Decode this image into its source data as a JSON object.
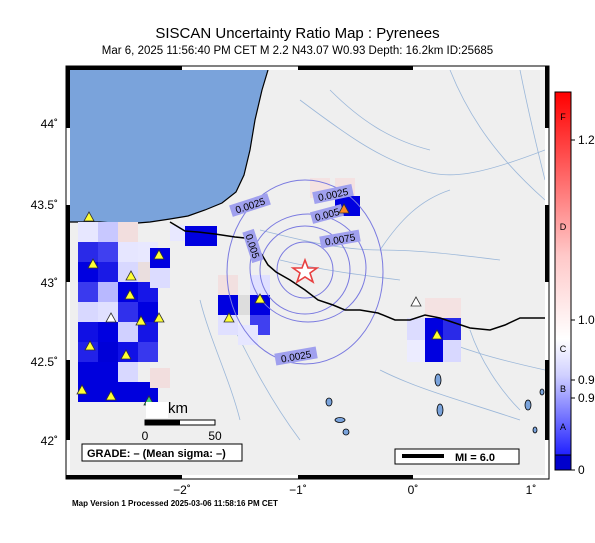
{
  "title": "SISCAN Uncertainty Ratio Map : Pyrenees",
  "subtitle": "Mar  6, 2025 11:56:40 PM CET    M 2.2    N43.07 W0.93    Depth: 16.2km    ID:25685",
  "footer": "Map Version 1 Processed 2025-03-06 11:58:16 PM CET",
  "axes": {
    "x_ticks": [
      "−2˚",
      "−1˚",
      "0˚",
      "1˚"
    ],
    "y_ticks": [
      "44˚",
      "43.5˚",
      "43˚",
      "42.5˚",
      "42˚"
    ]
  },
  "contour_labels": [
    "0.0025",
    "0.0025",
    "0.005",
    "0.0075",
    "0.005",
    "0.0025"
  ],
  "scale_bar": {
    "unit": "km",
    "ticks": [
      "0",
      "50"
    ]
  },
  "grade_text": "GRADE: – (Mean sigma: –)",
  "mi_text": "MI = 6.0",
  "colorbar": {
    "letters": [
      "F",
      "D",
      "C",
      "B",
      "A"
    ],
    "values": [
      "1.2",
      "1.0",
      "0.9",
      "0.9",
      "0"
    ],
    "colors": {
      "top": "#ff0000",
      "mid": "#ffffff",
      "bottom": "#0000cc"
    }
  },
  "colors": {
    "sea": "#7aa3db",
    "land": "#efefef",
    "epicenter": "#e84040",
    "station": "#ffff33"
  }
}
